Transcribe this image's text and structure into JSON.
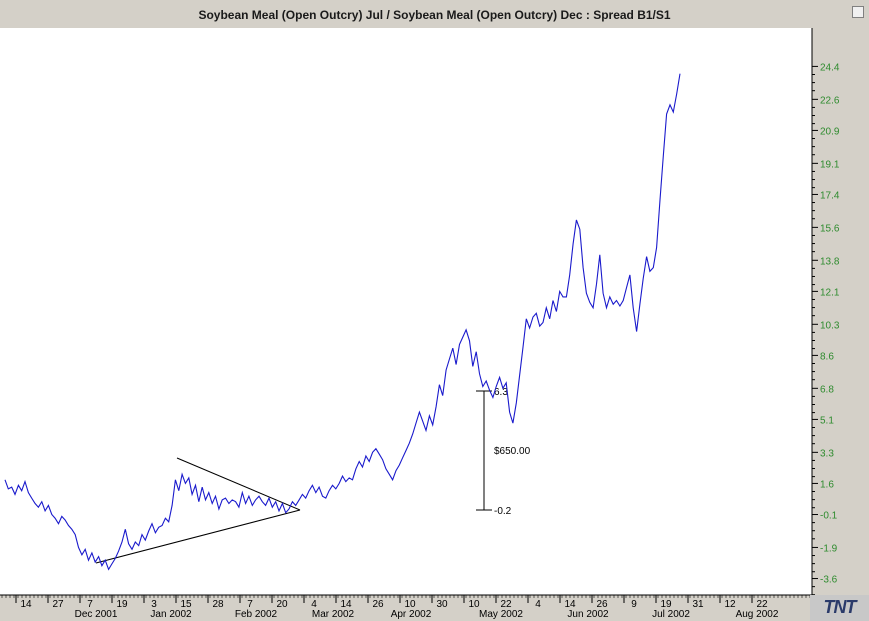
{
  "window": {
    "title": "Soybean Meal (Open Outcry) Jul  / Soybean Meal (Open Outcry) Dec  : Spread B1/S1"
  },
  "logo": {
    "text": "TNT"
  },
  "colors": {
    "series": "#1a1acc",
    "axis_label": "#2e8b2e",
    "background": "#ffffff",
    "frame": "#d4d0c8"
  },
  "chart_data": {
    "type": "line",
    "title": "Soybean Meal (Open Outcry) Jul  / Soybean Meal (Open Outcry) Dec  : Spread B1/S1",
    "xlabel": "",
    "ylabel": "",
    "ylim": [
      -4.5,
      26.5
    ],
    "y_ticks": [
      "24.4",
      "22.6",
      "20.9",
      "19.1",
      "17.4",
      "15.6",
      "13.8",
      "12.1",
      "10.3",
      "8.6",
      "6.8",
      "5.1",
      "3.3",
      "1.6",
      "-0.1",
      "-1.9",
      "-3.6"
    ],
    "x_day_ticks": [
      "14",
      "27",
      "7",
      "19",
      "3",
      "15",
      "28",
      "7",
      "20",
      "4",
      "14",
      "26",
      "10",
      "30",
      "10",
      "22",
      "4",
      "14",
      "26",
      "9",
      "19",
      "31",
      "12",
      "22"
    ],
    "x_month_labels": [
      "Dec 2001",
      "Jan 2002",
      "Feb 2002",
      "Mar 2002",
      "Apr 2002",
      "May 2002",
      "Jun 2002",
      "Jul 2002",
      "Aug 2002"
    ],
    "series": [
      {
        "values": [
          1.8,
          1.3,
          1.4,
          1.0,
          1.5,
          1.2,
          1.7,
          1.1,
          0.8,
          0.5,
          0.3,
          0.6,
          0.1,
          0.4,
          -0.1,
          -0.3,
          -0.6,
          -0.2,
          -0.4,
          -0.7,
          -0.9,
          -1.2,
          -1.9,
          -2.3,
          -2.0,
          -2.6,
          -2.2,
          -2.7,
          -2.4,
          -2.9,
          -2.6,
          -3.1,
          -2.8,
          -2.5,
          -2.1,
          -1.6,
          -0.9,
          -1.7,
          -2.0,
          -1.6,
          -1.8,
          -1.2,
          -1.5,
          -1.0,
          -0.6,
          -1.1,
          -0.8,
          -0.7,
          -0.3,
          -0.5,
          0.4,
          1.8,
          1.2,
          2.1,
          1.6,
          1.9,
          1.0,
          1.5,
          0.6,
          1.4,
          0.7,
          1.1,
          0.5,
          0.9,
          0.2,
          0.7,
          0.8,
          0.5,
          0.7,
          0.6,
          0.3,
          1.1,
          0.5,
          0.9,
          0.4,
          0.7,
          0.9,
          0.6,
          0.4,
          0.8,
          0.3,
          0.6,
          0.1,
          0.5,
          0.0,
          0.2,
          0.6,
          0.4,
          0.7,
          1.0,
          0.8,
          1.2,
          1.5,
          1.1,
          1.4,
          0.9,
          0.8,
          1.2,
          1.5,
          1.3,
          1.6,
          2.0,
          1.7,
          1.9,
          1.8,
          2.4,
          2.8,
          2.5,
          3.1,
          2.8,
          3.3,
          3.5,
          3.2,
          2.9,
          2.4,
          2.1,
          1.8,
          2.3,
          2.6,
          3.0,
          3.4,
          3.8,
          4.3,
          4.9,
          5.5,
          5.0,
          4.5,
          5.3,
          4.8,
          5.8,
          7.0,
          6.4,
          7.8,
          8.4,
          9.0,
          8.1,
          9.2,
          9.6,
          10.0,
          9.4,
          8.0,
          8.8,
          7.6,
          6.9,
          7.2,
          6.7,
          6.3,
          6.9,
          7.4,
          6.8,
          7.1,
          5.5,
          4.9,
          6.0,
          7.5,
          9.0,
          10.6,
          10.1,
          10.7,
          10.9,
          10.2,
          10.4,
          11.2,
          10.6,
          11.6,
          11.0,
          12.1,
          11.8,
          11.8,
          13.0,
          14.7,
          16.0,
          15.5,
          13.4,
          12.0,
          11.5,
          11.2,
          12.5,
          14.1,
          12.0,
          11.2,
          11.8,
          11.4,
          11.6,
          11.3,
          11.6,
          12.3,
          13.0,
          11.2,
          9.9,
          11.4,
          12.8,
          14.0,
          13.2,
          13.4,
          14.5,
          17.1,
          19.5,
          21.8,
          22.3,
          21.9,
          22.9,
          24.0
        ]
      }
    ],
    "annotations": [
      {
        "type": "range_marker",
        "top_label": "6.3",
        "bottom_label": "-0.2",
        "value_label": "$650.00"
      },
      {
        "type": "triangle_pattern"
      }
    ]
  }
}
